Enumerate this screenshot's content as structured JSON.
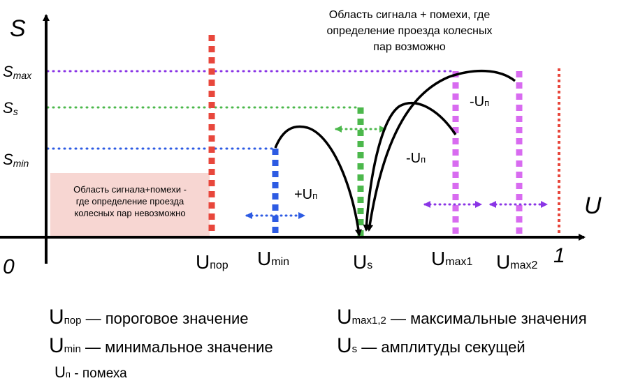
{
  "axes": {
    "y_label": "S",
    "x_label": "U",
    "origin_label": "0",
    "x_end_label": "1"
  },
  "y_levels": {
    "smax": {
      "main": "S",
      "sub": "max"
    },
    "ss": {
      "main": "S",
      "sub": "s"
    },
    "smin": {
      "main": "S",
      "sub": "min"
    }
  },
  "x_marks": {
    "upor": {
      "main": "U",
      "sub": "пор"
    },
    "umin": {
      "main": "U",
      "sub": "min"
    },
    "us": {
      "main": "U",
      "sub": "s"
    },
    "umax1": {
      "main": "U",
      "sub": "max1"
    },
    "umax2": {
      "main": "U",
      "sub": "max2"
    }
  },
  "arrow_labels": {
    "plus_un": {
      "main": "+U",
      "sub": "п"
    },
    "minus_un_upper": {
      "main": "-U",
      "sub": "п"
    },
    "minus_un_lower": {
      "main": "-U",
      "sub": "п"
    }
  },
  "top_caption": [
    "Область сигнала + помехи, где",
    "определение проезда колесных",
    "пар возможно"
  ],
  "pink_box": [
    "Область сигнала+помехи -",
    "где определение проезда",
    "колесных пар невозможно"
  ],
  "legend": {
    "upor": {
      "main": "U",
      "sub": "пор",
      "text": " — пороговое значение"
    },
    "umin": {
      "main": "U",
      "sub": "min",
      "text": " — минимальное значение"
    },
    "un": {
      "main": "U",
      "sub": "п",
      "text": " -  помеха"
    },
    "umax12": {
      "main": "U",
      "sub": "max1,2",
      "text": " — максимальные значения"
    },
    "us": {
      "main": "U",
      "sub": "s",
      "text": " — амплитуды секущей"
    }
  },
  "colors": {
    "red": "#e8473c",
    "blue": "#2d5be3",
    "green": "#4cb84c",
    "purple": "#d86bf0",
    "violet": "#8a35e6",
    "pink_box": "#f7d6d2"
  }
}
